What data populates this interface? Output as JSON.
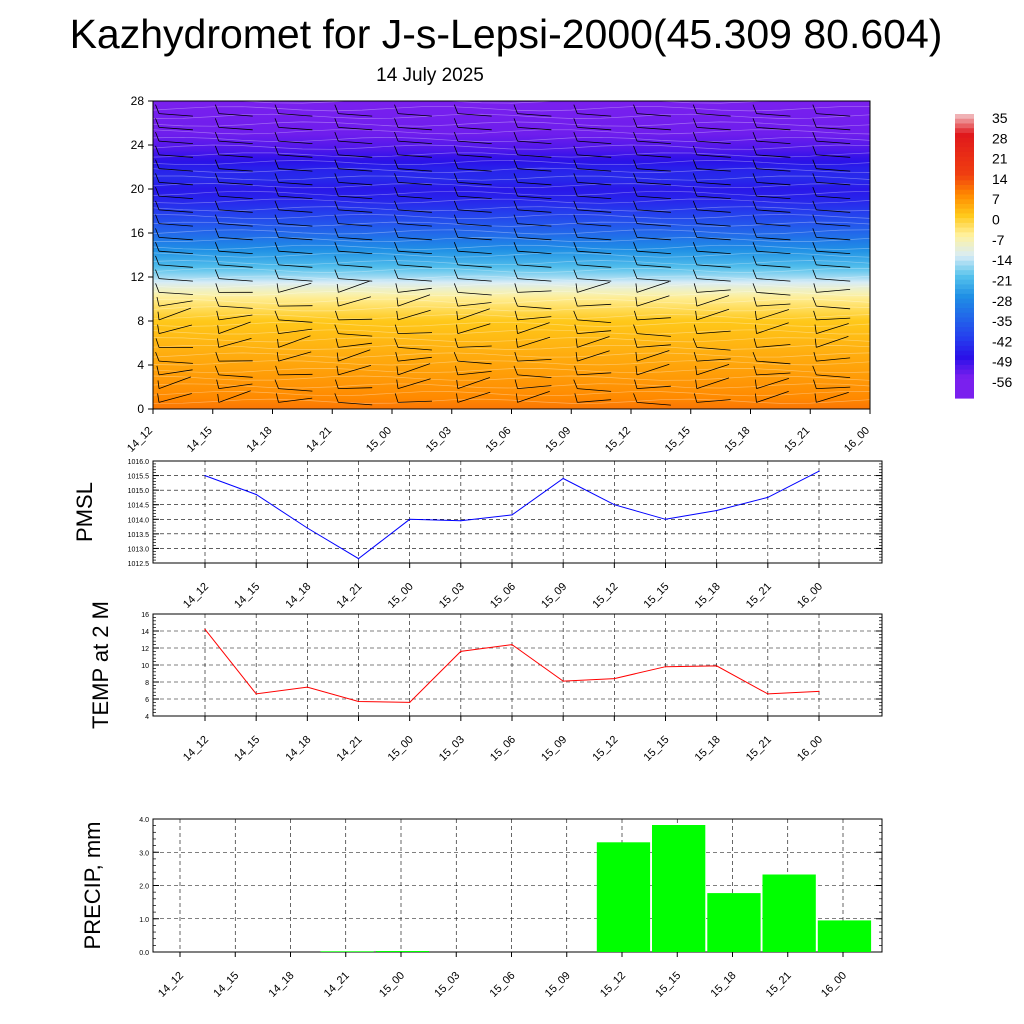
{
  "title": "Kazhydromet for J-s-Lepsi-2000(45.309 80.604)",
  "subtitle": "14 July 2025",
  "time_labels": [
    "14_12",
    "14_15",
    "14_18",
    "14_21",
    "15_00",
    "15_03",
    "15_06",
    "15_09",
    "15_12",
    "15_15",
    "15_18",
    "15_21",
    "16_00"
  ],
  "chart_data": [
    {
      "type": "heatmap",
      "title": "",
      "xlabel": "",
      "ylabel": "",
      "x": [
        "14_12",
        "14_15",
        "14_18",
        "14_21",
        "15_00",
        "15_03",
        "15_06",
        "15_09",
        "15_12",
        "15_15",
        "15_18",
        "15_21",
        "16_00"
      ],
      "ylim": [
        0,
        28
      ],
      "yticks": [
        0,
        4,
        8,
        12,
        16,
        20,
        24,
        28
      ],
      "colorbar": {
        "labels": [
          "35",
          "28",
          "21",
          "14",
          "7",
          "0",
          "-7",
          "-14",
          "-21",
          "-28",
          "-35",
          "-42",
          "-49",
          "-56"
        ],
        "stops": [
          {
            "value": 35,
            "color": "#f2c6c9"
          },
          {
            "value": 28,
            "color": "#e0181c"
          },
          {
            "value": 14,
            "color": "#f03f10"
          },
          {
            "value": 7,
            "color": "#ff8a00"
          },
          {
            "value": 0,
            "color": "#ffc81a"
          },
          {
            "value": -7,
            "color": "#fff2a0"
          },
          {
            "value": -14,
            "color": "#d8ecf6"
          },
          {
            "value": -21,
            "color": "#55c2ec"
          },
          {
            "value": -28,
            "color": "#1f8fe5"
          },
          {
            "value": -42,
            "color": "#2540ee"
          },
          {
            "value": -49,
            "color": "#2a10e8"
          },
          {
            "value": -56,
            "color": "#7a20ee"
          }
        ]
      },
      "temperature_profile": [
        [
          0,
          9
        ],
        [
          1,
          7
        ],
        [
          3,
          5
        ],
        [
          6,
          2
        ],
        [
          8,
          0
        ],
        [
          10,
          -6
        ],
        [
          11,
          -11
        ],
        [
          12,
          -17
        ],
        [
          13,
          -22
        ],
        [
          14.5,
          -28
        ],
        [
          16,
          -35
        ],
        [
          17.5,
          -41
        ],
        [
          19,
          -46
        ],
        [
          20,
          -48
        ],
        [
          21,
          -45
        ],
        [
          22,
          -47
        ],
        [
          23.5,
          -52
        ],
        [
          25,
          -55
        ],
        [
          28,
          -56
        ]
      ],
      "wind_barbs": "black wind barbs at each time, levels 0-28"
    },
    {
      "type": "line",
      "ylabel": "PMSL",
      "x": [
        "14_12",
        "14_15",
        "14_18",
        "14_21",
        "15_00",
        "15_03",
        "15_06",
        "15_09",
        "15_12",
        "15_15",
        "15_18",
        "15_21",
        "16_00"
      ],
      "series": [
        {
          "values": [
            1015.5,
            1014.85,
            1013.7,
            1012.65,
            1014.0,
            1013.95,
            1014.15,
            1015.4,
            1014.5,
            1014.0,
            1014.3,
            1014.75,
            1015.65
          ],
          "color": "#0000ff"
        }
      ],
      "ylim": [
        1012.5,
        1016.0
      ],
      "yticks": [
        "1012.5",
        "1013.0",
        "1013.5",
        "1014.0",
        "1014.5",
        "1015.0",
        "1015.5",
        "1016.0"
      ],
      "grid": true
    },
    {
      "type": "line",
      "ylabel": "TEMP at 2 M",
      "x": [
        "14_12",
        "14_15",
        "14_18",
        "14_21",
        "15_00",
        "15_03",
        "15_06",
        "15_09",
        "15_12",
        "15_15",
        "15_18",
        "15_21",
        "16_00"
      ],
      "series": [
        {
          "values": [
            14.2,
            6.6,
            7.4,
            5.7,
            5.6,
            11.6,
            12.4,
            8.1,
            8.4,
            9.8,
            9.9,
            6.6,
            6.9
          ],
          "color": "#ff0000"
        }
      ],
      "ylim": [
        4,
        16
      ],
      "yticks": [
        "4",
        "6",
        "8",
        "10",
        "12",
        "14",
        "16"
      ],
      "grid": true
    },
    {
      "type": "bar",
      "ylabel": "PRECIP, mm",
      "categories": [
        "14_12",
        "14_15",
        "14_18",
        "14_21",
        "15_00",
        "15_03",
        "15_06",
        "15_09",
        "15_12",
        "15_15",
        "15_18",
        "15_21",
        "16_00"
      ],
      "values": [
        0,
        0,
        0.02,
        0.03,
        0,
        0,
        0,
        3.3,
        3.82,
        1.77,
        2.33,
        0.95,
        0
      ],
      "color": "#00ff00",
      "ylim": [
        0,
        4
      ],
      "yticks": [
        "0.0",
        "1.0",
        "2.0",
        "3.0",
        "4.0"
      ],
      "grid": true
    }
  ]
}
